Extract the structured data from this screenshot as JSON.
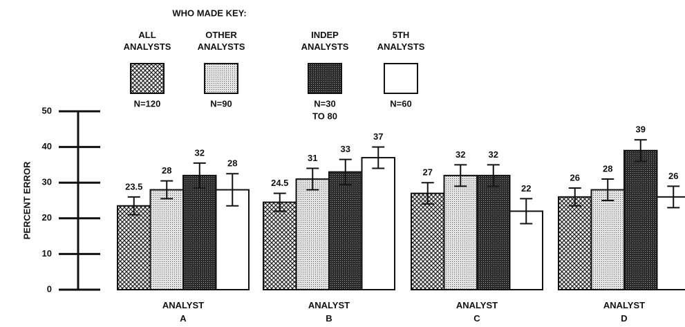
{
  "chart_data": {
    "type": "bar",
    "legend_title": "WHO MADE KEY:",
    "y_label": "PERCENT ERROR",
    "categories": [
      "ANALYST A",
      "ANALYST B",
      "ANALYST C",
      "ANALYST D"
    ],
    "ylim": [
      0,
      50
    ],
    "yticks": [
      0,
      10,
      20,
      30,
      40,
      50
    ],
    "series": [
      {
        "name": "ALL ANALYSTS",
        "n_label": [
          "N=120"
        ],
        "color": "#555555",
        "pattern": "crosshatch",
        "values": [
          23.5,
          24.5,
          27,
          26
        ],
        "errors": [
          2.5,
          2.5,
          3,
          2.5
        ]
      },
      {
        "name": "OTHER ANALYSTS",
        "n_label": [
          "N=90"
        ],
        "color": "#bbbbbb",
        "pattern": "dots",
        "values": [
          28,
          31,
          32,
          28
        ],
        "errors": [
          2.5,
          3,
          3,
          3
        ]
      },
      {
        "name": "INDEP ANALYSTS",
        "n_label": [
          "N=30",
          "TO 80"
        ],
        "color": "#3a3a3a",
        "pattern": "dark",
        "values": [
          32,
          33,
          32,
          39
        ],
        "errors": [
          3.5,
          3.5,
          3,
          3
        ]
      },
      {
        "name": "5TH ANALYSTS",
        "n_label": [
          "N=60"
        ],
        "color": "#ffffff",
        "pattern": "none",
        "values": [
          28,
          37,
          22,
          26
        ],
        "errors": [
          4.5,
          3,
          3.5,
          3
        ]
      }
    ]
  }
}
